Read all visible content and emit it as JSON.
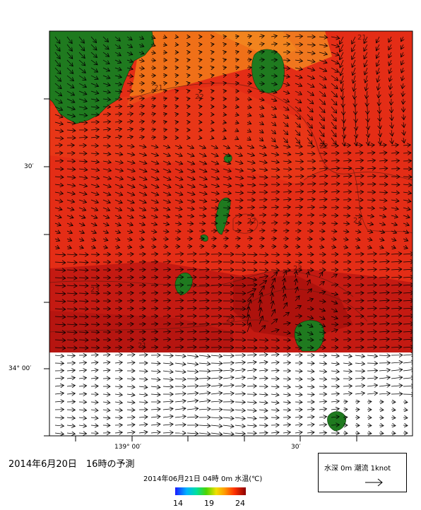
{
  "title": "2014年6月20日　16時の予測",
  "colorbar": {
    "caption": "2014年06月21日 04時 0m 水温(℃)",
    "min_label": "14",
    "mid_label": "19",
    "max_label": "24",
    "colors": [
      "#1a1aff",
      "#00b3ff",
      "#4cd400",
      "#f0e000",
      "#ff9a00",
      "#ff3000",
      "#8b0000"
    ]
  },
  "axes": {
    "lat_labels": [
      "30′",
      "34° 00′"
    ],
    "lon_labels": [
      "139° 00′",
      "30′"
    ]
  },
  "contour_labels": [
    "21",
    "22",
    "22",
    "22",
    "22",
    "21",
    "23",
    "23",
    "23",
    "21"
  ],
  "legend": {
    "text": "水深 0m  潮流 1knot"
  },
  "colors": {
    "land": "#1f7a1f",
    "sea_warm": "#e8321a",
    "sea_cool": "#f26b1a",
    "sea_hot": "#b3120f"
  }
}
